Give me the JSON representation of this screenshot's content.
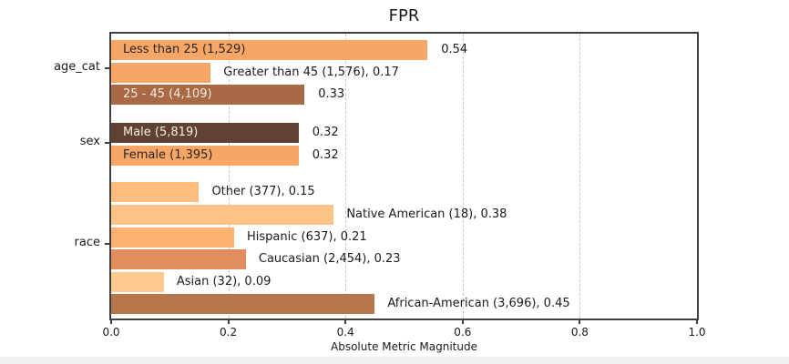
{
  "chart_data": {
    "type": "bar",
    "orientation": "horizontal",
    "title": "FPR",
    "xlabel": "Absolute Metric Magnitude",
    "xlim": [
      0.0,
      1.0
    ],
    "xtick_labels": [
      "0.0",
      "0.2",
      "0.4",
      "0.6",
      "0.8",
      "1.0"
    ],
    "xtick_values": [
      0.0,
      0.2,
      0.4,
      0.6,
      0.8,
      1.0
    ],
    "gridlines_at": [
      0.2,
      0.4,
      0.6,
      0.8
    ],
    "grid_style": "vertical-dashed",
    "groups": [
      {
        "label": "age_cat",
        "bars": [
          {
            "name": "Less than 25",
            "count": "1,529",
            "value": 0.54,
            "color": "#f8a665",
            "label_placement": "inside",
            "bar_label": "Less than 25 (1,529)",
            "bar_label_color": "#262626",
            "value_label": "0.54"
          },
          {
            "name": "Greater than 45",
            "count": "1,576",
            "value": 0.17,
            "color": "#f8a665",
            "label_placement": "outside",
            "bar_label": "Greater than 45 (1,576), 0.17"
          },
          {
            "name": "25 - 45",
            "count": "4,109",
            "value": 0.33,
            "color": "#a86944",
            "label_placement": "inside",
            "bar_label": "25 - 45 (4,109)",
            "bar_label_color": "#f8ece0",
            "value_label": "0.33"
          }
        ]
      },
      {
        "label": "sex",
        "bars": [
          {
            "name": "Male",
            "count": "5,819",
            "value": 0.32,
            "color": "#5f4231",
            "label_placement": "inside",
            "bar_label": "Male (5,819)",
            "bar_label_color": "#f8ece0",
            "value_label": "0.32"
          },
          {
            "name": "Female",
            "count": "1,395",
            "value": 0.32,
            "color": "#f8a665",
            "label_placement": "inside",
            "bar_label": "Female (1,395)",
            "bar_label_color": "#262626",
            "value_label": "0.32"
          }
        ]
      },
      {
        "label": "race",
        "bars": [
          {
            "name": "Other",
            "count": "377",
            "value": 0.15,
            "color": "#fdbd7e",
            "label_placement": "outside",
            "bar_label": "Other (377), 0.15"
          },
          {
            "name": "Native American",
            "count": "18",
            "value": 0.38,
            "color": "#fdc286",
            "label_placement": "outside",
            "bar_label": "Native American (18), 0.38"
          },
          {
            "name": "Hispanic",
            "count": "637",
            "value": 0.21,
            "color": "#fbb171",
            "label_placement": "outside",
            "bar_label": "Hispanic (637), 0.21"
          },
          {
            "name": "Caucasian",
            "count": "2,454",
            "value": 0.23,
            "color": "#e28e5c",
            "label_placement": "outside",
            "bar_label": "Caucasian (2,454), 0.23"
          },
          {
            "name": "Asian",
            "count": "32",
            "value": 0.09,
            "color": "#fdc98e",
            "label_placement": "outside",
            "bar_label": "Asian (32), 0.09"
          },
          {
            "name": "African-American",
            "count": "3,696",
            "value": 0.45,
            "color": "#b5764c",
            "label_placement": "outside",
            "bar_label": "African-American (3,696), 0.45"
          }
        ]
      }
    ]
  }
}
